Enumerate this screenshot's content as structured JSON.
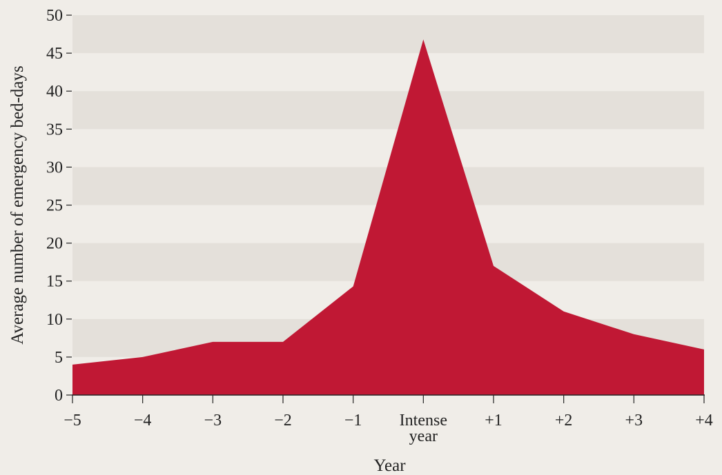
{
  "chart_data": {
    "type": "area",
    "x": [
      "−5",
      "−4",
      "−3",
      "−2",
      "−1",
      "Intense year",
      "+1",
      "+2",
      "+3",
      "+4"
    ],
    "x_tick_lines": [
      [
        "−5"
      ],
      [
        "−4"
      ],
      [
        "−3"
      ],
      [
        "−2"
      ],
      [
        "−1"
      ],
      [
        "Intense",
        "year"
      ],
      [
        "+1"
      ],
      [
        "+2"
      ],
      [
        "+3"
      ],
      [
        "+4"
      ]
    ],
    "values": [
      4,
      5,
      7,
      7,
      14.3,
      46.8,
      17,
      11,
      8,
      6
    ],
    "xlabel": "Year",
    "ylabel": "Average number of emergency bed-days",
    "ylim": [
      0,
      50
    ],
    "y_ticks": [
      0,
      5,
      10,
      15,
      20,
      25,
      30,
      35,
      40,
      45,
      50
    ],
    "grid": "alternating horizontal bands",
    "colors": {
      "background": "#f0ede8",
      "band": "#e4e0da",
      "fill": "#c01834",
      "axis": "#222222"
    }
  }
}
